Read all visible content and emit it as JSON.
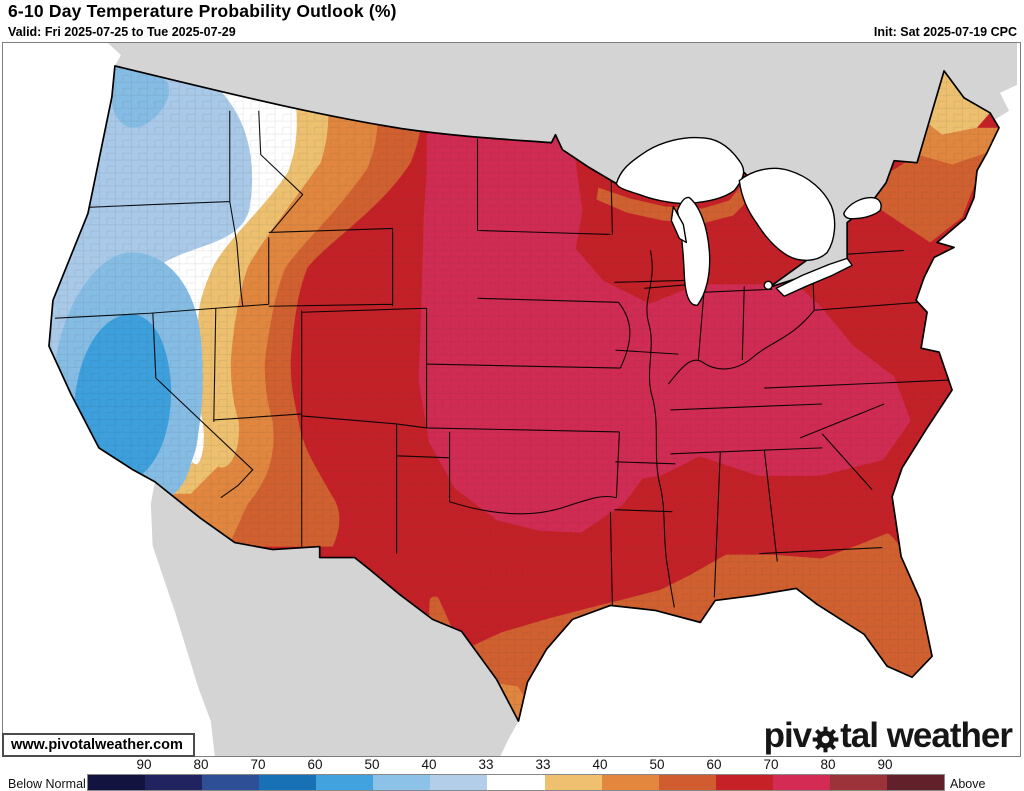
{
  "header": {
    "title": "6-10 Day Temperature Probability Outlook (%)",
    "valid": "Valid: Fri 2025-07-25 to Tue 2025-07-29",
    "init": "Init: Sat 2025-07-19 CPC"
  },
  "watermark": "www.pivotalweather.com",
  "logo": {
    "pre": "piv",
    "post": "tal weather"
  },
  "map": {
    "description": "CPC 6-10 day temperature probability outlook map of the contiguous United States",
    "colors": {
      "canada": "#d4d4d4",
      "ocean": "#ffffff",
      "blue_outer": "#a9c9e8",
      "blue_mid": "#85bce4",
      "blue_core": "#3d9fdc",
      "band_white": "#ffffff",
      "tan": "#ecc06f",
      "orange": "#e0863f",
      "dark_orange": "#d0602f",
      "red": "#c32127",
      "crimson": "#d02b52",
      "border_black": "#000000"
    }
  },
  "legend": {
    "below_label": "Below Normal",
    "above_label": "Above Normal",
    "ticks_below": [
      "90",
      "80",
      "70",
      "60",
      "50",
      "40",
      "33"
    ],
    "ticks_above": [
      "33",
      "40",
      "50",
      "60",
      "70",
      "80",
      "90"
    ],
    "seg_width": 57,
    "segments": [
      "#131340",
      "#212360",
      "#2e4f96",
      "#1971b5",
      "#42a2de",
      "#8cc1e8",
      "#b2cee9",
      "#ffffff",
      "#eec06f",
      "#e3873e",
      "#d05c30",
      "#c52127",
      "#d42b55",
      "#9c333b",
      "#61202a"
    ]
  }
}
